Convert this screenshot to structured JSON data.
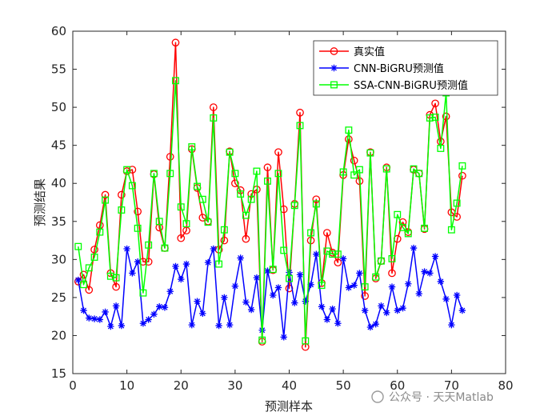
{
  "chart_data": {
    "type": "line",
    "xlabel": "预测样本",
    "ylabel": "预测结果",
    "xlim": [
      0,
      80
    ],
    "ylim": [
      15,
      60
    ],
    "xticks": [
      "0",
      "10",
      "20",
      "30",
      "40",
      "50",
      "60",
      "70",
      "80"
    ],
    "yticks": [
      "15",
      "20",
      "25",
      "30",
      "35",
      "40",
      "45",
      "50",
      "55",
      "60"
    ],
    "grid": false,
    "legend_position": "top-right",
    "x": [
      1,
      2,
      3,
      4,
      5,
      6,
      7,
      8,
      9,
      10,
      11,
      12,
      13,
      14,
      15,
      16,
      17,
      18,
      19,
      20,
      21,
      22,
      23,
      24,
      25,
      26,
      27,
      28,
      29,
      30,
      31,
      32,
      33,
      34,
      35,
      36,
      37,
      38,
      39,
      40,
      41,
      42,
      43,
      44,
      45,
      46,
      47,
      48,
      49,
      50,
      51,
      52,
      53,
      54,
      55,
      56,
      57,
      58,
      59,
      60,
      61,
      62,
      63,
      64,
      65,
      66,
      67,
      68,
      69,
      70,
      71,
      72
    ],
    "series": [
      {
        "name": "真实值",
        "color": "#ff0000",
        "marker": "circle",
        "values": [
          27.1,
          28.0,
          26.0,
          31.3,
          34.5,
          38.5,
          28.2,
          26.4,
          38.5,
          41.6,
          41.8,
          36.3,
          29.7,
          29.7,
          41.2,
          34.2,
          31.5,
          43.5,
          58.5,
          32.8,
          33.8,
          44.5,
          39.4,
          35.5,
          35.0,
          50.0,
          31.3,
          32.5,
          44.2,
          40.0,
          39.1,
          32.7,
          38.6,
          39.2,
          19.2,
          42.1,
          28.6,
          44.1,
          36.6,
          26.2,
          37.3,
          49.3,
          18.5,
          32.5,
          37.9,
          26.9,
          33.5,
          30.9,
          29.6,
          41.1,
          45.8,
          43.0,
          40.3,
          25.2,
          44.1,
          27.5,
          29.8,
          42.1,
          28.2,
          32.7,
          34.9,
          33.6,
          41.8,
          41.3,
          34.0,
          49.0,
          50.5,
          45.5,
          48.8,
          36.2,
          35.6,
          41.0
        ]
      },
      {
        "name": "CNN-BiGRU预测值",
        "color": "#0000ff",
        "marker": "asterisk",
        "values": [
          27.3,
          23.3,
          22.3,
          22.2,
          22.1,
          23.1,
          21.2,
          23.9,
          21.3,
          31.4,
          28.2,
          29.7,
          21.6,
          22.1,
          22.8,
          23.8,
          23.7,
          25.8,
          29.1,
          27.4,
          29.4,
          21.4,
          24.5,
          22.9,
          29.6,
          31.4,
          21.3,
          25.0,
          21.4,
          26.5,
          30.2,
          24.4,
          23.4,
          27.6,
          20.7,
          28.5,
          25.3,
          26.3,
          19.8,
          28.3,
          24.3,
          28.0,
          24.5,
          26.7,
          30.7,
          23.8,
          22.1,
          23.5,
          21.6,
          30.1,
          26.3,
          26.6,
          28.2,
          23.3,
          21.1,
          21.5,
          23.9,
          23.0,
          26.4,
          23.3,
          23.6,
          26.8,
          31.5,
          25.5,
          28.4,
          28.2,
          30.4,
          27.1,
          24.8,
          21.4,
          25.3,
          23.3
        ]
      },
      {
        "name": "SSA-CNN-BiGRU预测值",
        "color": "#00ff00",
        "marker": "square",
        "values": [
          31.7,
          26.7,
          28.9,
          30.3,
          33.6,
          37.8,
          27.8,
          27.6,
          36.5,
          41.8,
          39.7,
          34.1,
          25.6,
          31.9,
          41.3,
          35.0,
          31.5,
          41.3,
          53.5,
          36.9,
          34.7,
          44.8,
          39.6,
          37.9,
          34.9,
          48.6,
          29.4,
          33.9,
          44.1,
          41.3,
          38.6,
          35.8,
          37.9,
          41.6,
          19.4,
          40.3,
          28.7,
          41.3,
          31.2,
          27.5,
          37.1,
          47.6,
          19.3,
          33.5,
          37.3,
          26.6,
          31.1,
          30.7,
          30.7,
          41.5,
          47.0,
          41.1,
          41.8,
          26.4,
          44.0,
          27.7,
          29.8,
          41.9,
          30.1,
          35.9,
          34.2,
          33.4,
          41.9,
          41.3,
          34.1,
          48.6,
          48.7,
          44.6,
          51.9,
          33.9,
          37.4,
          42.3
        ]
      }
    ],
    "watermark": "公众号 · 天天Matlab"
  }
}
